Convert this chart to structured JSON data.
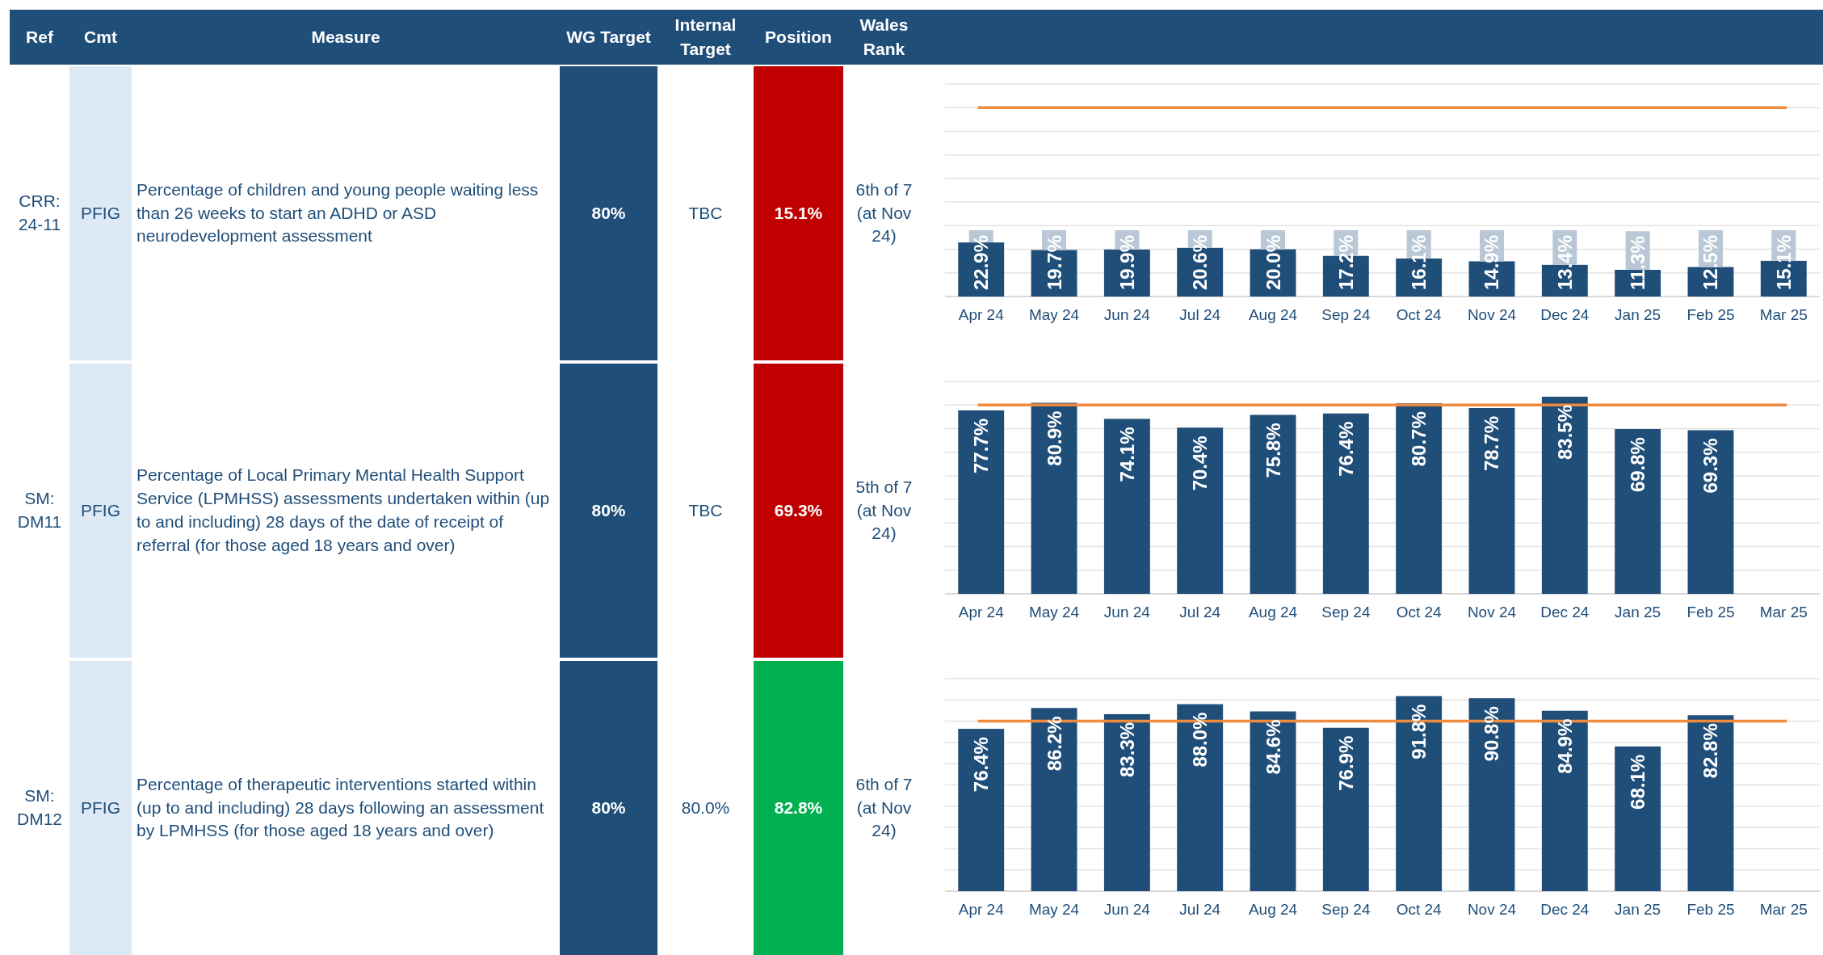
{
  "chart_data": [
    {
      "type": "other",
      "categories": [
        "Ref",
        "Cmt",
        "Measure",
        "WG Target",
        "Internal Target",
        "Position",
        "Wales Rank"
      ],
      "annotations": [
        "CRR: 24-11",
        "PFIG",
        "Percentage of children and young people waiting less than 26 weeks to start an ADHD or ASD neurodevelopment assessment",
        "80%",
        "TBC",
        "15.1%",
        "6th of 7 (at Nov 24)",
        "SM: DM11",
        "PFIG",
        "Percentage of Local Primary Mental Health Support Service (LPMHSS) assessments undertaken within (up to and including) 28 days of the date of receipt of referral (for those aged 18 years and over)",
        "80%",
        "TBC",
        "69.3%",
        "5th of 7 (at Nov 24)",
        "SM: DM12",
        "PFIG",
        "Percentage of therapeutic interventions started within (up to and including) 28 days following an assessment by LPMHSS (for those aged 18 years and over)",
        "80%",
        "80.0%",
        "82.8%",
        "6th of 7 (at Nov 24)"
      ],
      "colors": [
        "#c00000",
        "#c00000",
        "#00b050"
      ]
    },
    {
      "type": "bar",
      "categories": [
        "Apr 24",
        "May 24",
        "Jun 24",
        "Jul 24",
        "Aug 24",
        "Sep 24",
        "Oct 24",
        "Nov 24",
        "Dec 24",
        "Jan 25",
        "Feb 25",
        "Mar 25"
      ],
      "values": [
        22.9,
        19.7,
        19.9,
        20.6,
        20.0,
        17.2,
        16.1,
        14.9,
        13.4,
        11.3,
        12.5,
        15.1
      ],
      "value_labels": [
        "22.9%",
        "19.7%",
        "19.9%",
        "20.6%",
        "20.0%",
        "17.2%",
        "16.1%",
        "14.9%",
        "13.4%",
        "11.3%",
        "12.5%",
        "15.1%"
      ],
      "color": "#1f4e79",
      "ylim": [
        0,
        90
      ],
      "yticks": [
        {
          "value": 10,
          "label": null
        },
        {
          "value": 20,
          "label": null
        },
        {
          "value": 30,
          "label": null
        },
        {
          "value": 40,
          "label": null
        },
        {
          "value": 50,
          "label": null
        },
        {
          "value": 60,
          "label": null
        },
        {
          "value": 70,
          "label": null
        },
        {
          "value": 80,
          "label": null
        },
        {
          "value": 90,
          "label": null
        }
      ],
      "grid": "y",
      "tick_labels": "x",
      "ref_lines": [
        {
          "axis": "y",
          "value": 80,
          "color": "#f08a3c"
        }
      ]
    },
    {
      "type": "bar",
      "categories": [
        "Apr 24",
        "May 24",
        "Jun 24",
        "Jul 24",
        "Aug 24",
        "Sep 24",
        "Oct 24",
        "Nov 24",
        "Dec 24",
        "Jan 25",
        "Feb 25",
        "Mar 25"
      ],
      "values": [
        77.7,
        80.9,
        74.1,
        70.4,
        75.8,
        76.4,
        80.7,
        78.7,
        83.5,
        69.8,
        69.3,
        null
      ],
      "value_labels": [
        "77.7%",
        "80.9%",
        "74.1%",
        "70.4%",
        "75.8%",
        "76.4%",
        "80.7%",
        "78.7%",
        "83.5%",
        "69.8%",
        "69.3%",
        null
      ],
      "color": "#1f4e79",
      "ylim": [
        0,
        90
      ],
      "yticks": [
        {
          "value": 10,
          "label": null
        },
        {
          "value": 20,
          "label": null
        },
        {
          "value": 30,
          "label": null
        },
        {
          "value": 40,
          "label": null
        },
        {
          "value": 50,
          "label": null
        },
        {
          "value": 60,
          "label": null
        },
        {
          "value": 70,
          "label": null
        },
        {
          "value": 80,
          "label": null
        },
        {
          "value": 90,
          "label": null
        }
      ],
      "grid": "y",
      "tick_labels": "x",
      "ref_lines": [
        {
          "axis": "y",
          "value": 80,
          "color": "#f08a3c"
        }
      ]
    },
    {
      "type": "bar",
      "categories": [
        "Apr 24",
        "May 24",
        "Jun 24",
        "Jul 24",
        "Aug 24",
        "Sep 24",
        "Oct 24",
        "Nov 24",
        "Dec 24",
        "Jan 25",
        "Feb 25",
        "Mar 25"
      ],
      "values": [
        76.4,
        86.2,
        83.3,
        88.0,
        84.6,
        76.9,
        91.8,
        90.8,
        84.9,
        68.1,
        82.8,
        null
      ],
      "value_labels": [
        "76.4%",
        "86.2%",
        "83.3%",
        "88.0%",
        "84.6%",
        "76.9%",
        "91.8%",
        "90.8%",
        "84.9%",
        "68.1%",
        "82.8%",
        null
      ],
      "color": "#1f4e79",
      "ylim": [
        0,
        100
      ],
      "yticks": [
        {
          "value": 10,
          "label": null
        },
        {
          "value": 20,
          "label": null
        },
        {
          "value": 30,
          "label": null
        },
        {
          "value": 40,
          "label": null
        },
        {
          "value": 50,
          "label": null
        },
        {
          "value": 60,
          "label": null
        },
        {
          "value": 70,
          "label": null
        },
        {
          "value": 80,
          "label": null
        },
        {
          "value": 90,
          "label": null
        },
        {
          "value": 100,
          "label": null
        }
      ],
      "grid": "y",
      "tick_labels": "x",
      "ref_lines": [
        {
          "axis": "y",
          "value": 80,
          "color": "#f08a3c"
        }
      ]
    }
  ]
}
